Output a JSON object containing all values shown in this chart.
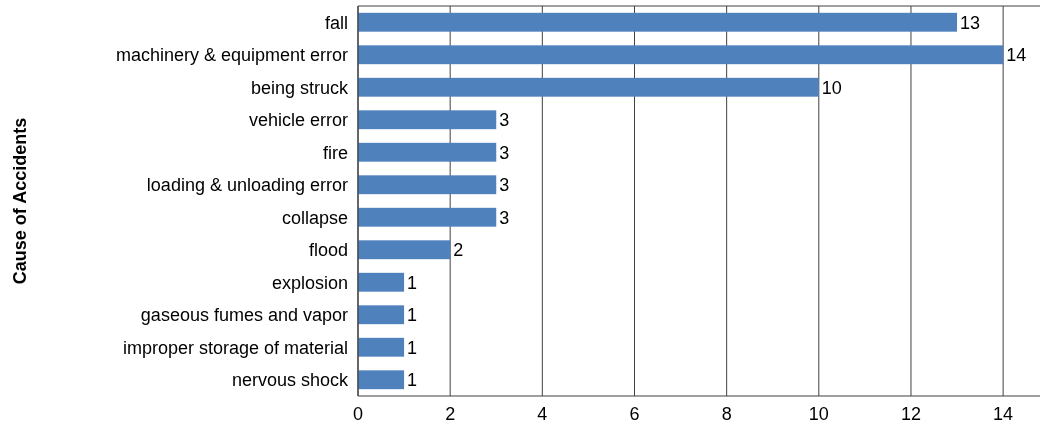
{
  "chart_data": {
    "type": "bar",
    "orientation": "horizontal",
    "ylabel": "Cause of Accidents",
    "categories": [
      "fall",
      "machinery & equipment error",
      "being struck",
      "vehicle error",
      "fire",
      "loading & unloading error",
      "collapse",
      "flood",
      "explosion",
      "gaseous fumes and vapor",
      "improper storage of material",
      "nervous shock"
    ],
    "values": [
      13,
      14,
      10,
      3,
      3,
      3,
      3,
      2,
      1,
      1,
      1,
      1
    ],
    "color": "#4f81bd",
    "xlim": [
      0,
      14.8
    ],
    "xticks": [
      0,
      2,
      4,
      6,
      8,
      10,
      12,
      14
    ],
    "grid": "x",
    "data_labels": true
  }
}
